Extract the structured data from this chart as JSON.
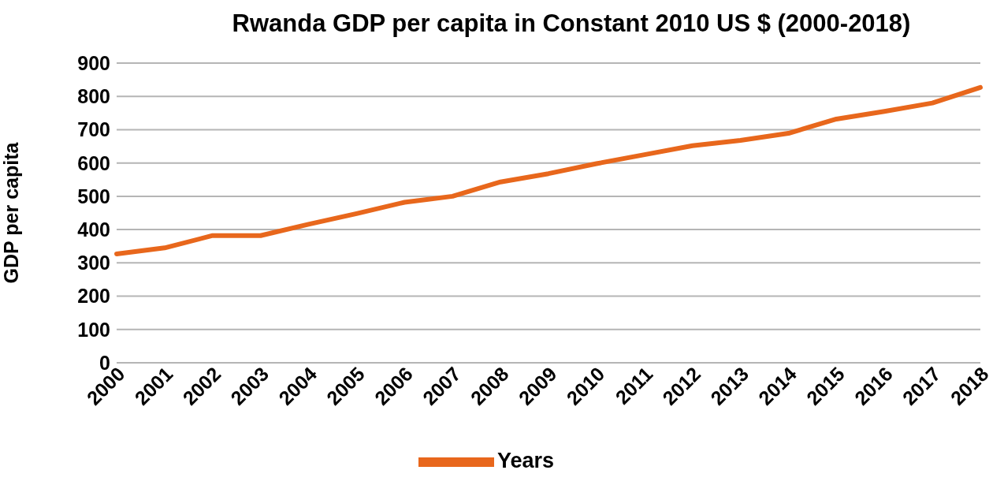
{
  "chart_data": {
    "type": "line",
    "title": "Rwanda GDP per capita in Constant 2010 US $ (2000-2018)",
    "ylabel": "GDP per capita",
    "categories": [
      "2000",
      "2001",
      "2002",
      "2003",
      "2004",
      "2005",
      "2006",
      "2007",
      "2008",
      "2009",
      "2010",
      "2011",
      "2012",
      "2013",
      "2014",
      "2015",
      "2016",
      "2017",
      "2018"
    ],
    "series": [
      {
        "name": "Years",
        "color": "#e8671c",
        "values": [
          327,
          345,
          382,
          382,
          416,
          448,
          482,
          500,
          543,
          568,
          598,
          625,
          652,
          668,
          689,
          732,
          755,
          780,
          827
        ]
      }
    ],
    "ylim": [
      0,
      900
    ],
    "yticks": [
      0,
      100,
      200,
      300,
      400,
      500,
      600,
      700,
      800,
      900
    ],
    "grid": "y",
    "legend": "bottom",
    "marker": "none",
    "line_style": "solid"
  }
}
